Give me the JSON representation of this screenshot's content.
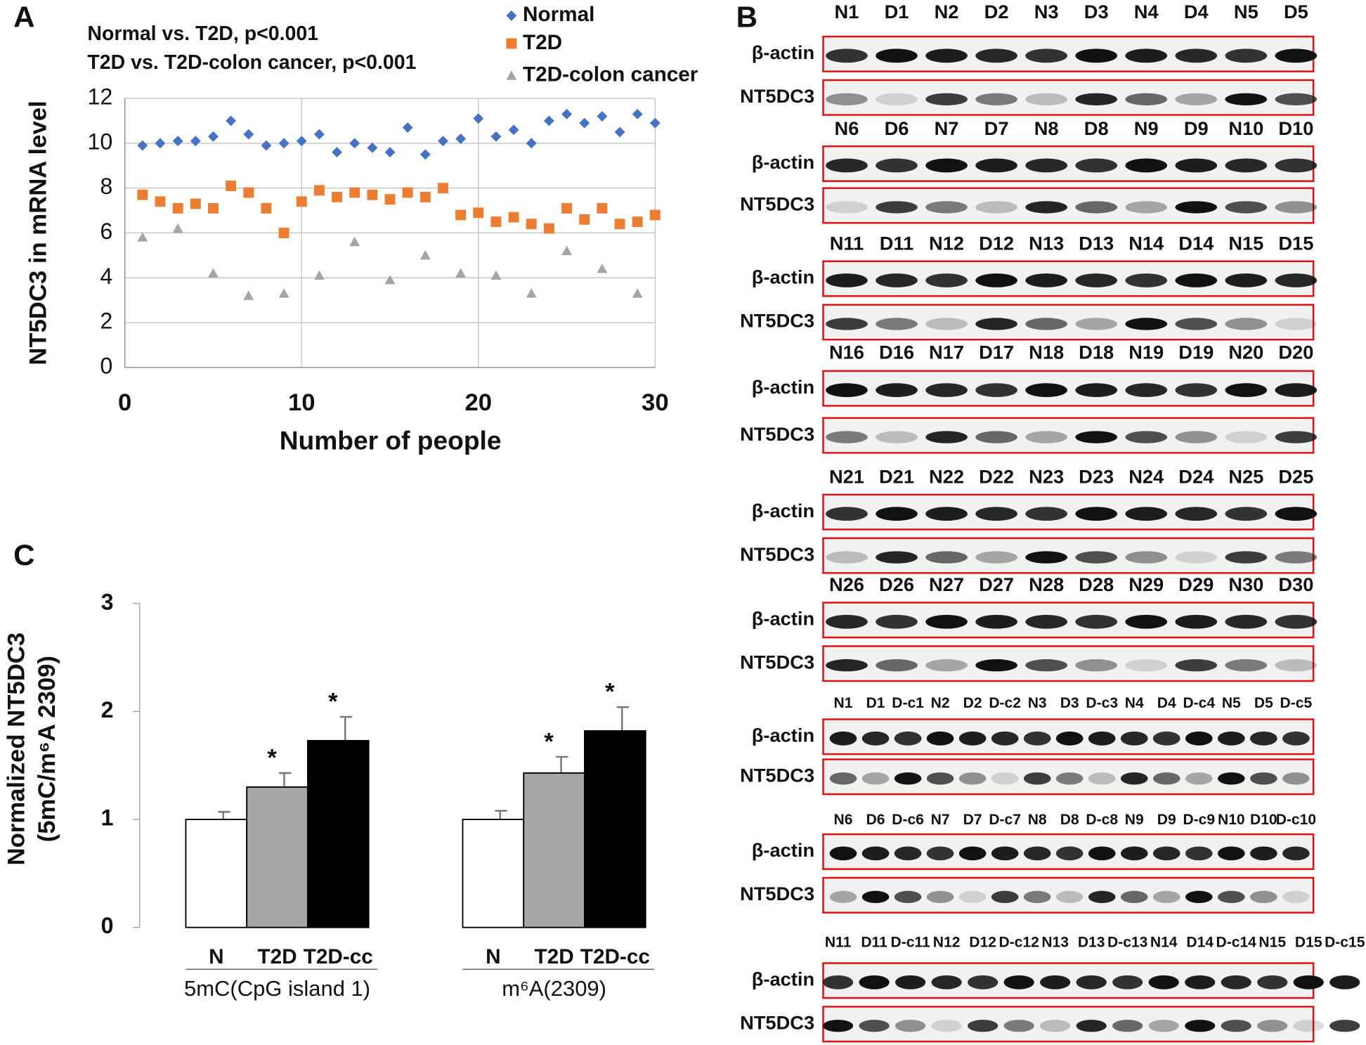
{
  "chart_data": [
    {
      "type": "scatter",
      "panel_label": "A",
      "annotations": [
        "Normal vs. T2D, p<0.001",
        "T2D vs. T2D-colon cancer, p<0.001"
      ],
      "y_label": "NT5DC3 in mRNA level",
      "x_label": "Number of people",
      "x": [
        1,
        2,
        3,
        4,
        5,
        6,
        7,
        8,
        9,
        10,
        11,
        12,
        13,
        14,
        15,
        16,
        17,
        18,
        19,
        20,
        21,
        22,
        23,
        24,
        25,
        26,
        27,
        28,
        29,
        30
      ],
      "series": [
        {
          "name": "Normal",
          "color": "#4472c4",
          "marker": "diamond",
          "values": [
            9.9,
            10.0,
            10.1,
            10.1,
            10.3,
            11.0,
            10.4,
            9.9,
            10.0,
            10.1,
            10.4,
            9.6,
            10.0,
            9.8,
            9.6,
            10.7,
            9.5,
            10.1,
            10.2,
            11.1,
            10.3,
            10.6,
            10.0,
            11.0,
            11.3,
            10.9,
            11.2,
            10.5,
            11.3,
            10.9
          ]
        },
        {
          "name": "T2D",
          "color": "#ed7d31",
          "marker": "square",
          "values": [
            7.7,
            7.4,
            7.1,
            7.3,
            7.1,
            8.1,
            7.8,
            7.1,
            6.0,
            7.4,
            7.9,
            7.6,
            7.8,
            7.7,
            7.5,
            7.8,
            7.6,
            8.0,
            6.8,
            6.9,
            6.5,
            6.7,
            6.4,
            6.2,
            7.1,
            6.6,
            7.1,
            6.4,
            6.5,
            6.8
          ]
        },
        {
          "name": "T2D-colon cancer",
          "color": "#a5a5a5",
          "marker": "triangle",
          "values": [
            5.8,
            null,
            6.2,
            null,
            4.2,
            null,
            3.2,
            null,
            3.3,
            null,
            4.1,
            null,
            5.6,
            null,
            3.9,
            null,
            5.0,
            null,
            4.2,
            null,
            4.1,
            null,
            3.3,
            null,
            5.2,
            null,
            4.4,
            null,
            3.3,
            null
          ]
        }
      ],
      "xlim": [
        0,
        30
      ],
      "xticks": [
        0,
        10,
        20,
        30
      ],
      "ylim": [
        0,
        12
      ],
      "yticks": [
        0,
        2,
        4,
        6,
        8,
        10,
        12
      ],
      "grid": true,
      "legend": "top-right"
    },
    {
      "type": "bar",
      "panel_label": "C",
      "y_label": [
        "Normalized  NT5DC3",
        "(5mC/m⁶A 2309)"
      ],
      "categories": [
        "5mC(CpG island 1)",
        "m⁶A(2309)"
      ],
      "series": [
        {
          "name": "N",
          "color": "#ffffff",
          "values": [
            1.0,
            1.0
          ],
          "errors": [
            0.07,
            0.08
          ]
        },
        {
          "name": "T2D",
          "color": "#a6a6a6",
          "values": [
            1.3,
            1.43
          ],
          "errors": [
            0.13,
            0.15
          ],
          "significance": [
            "*",
            "*"
          ]
        },
        {
          "name": "T2D-cc",
          "color": "#000000",
          "values": [
            1.73,
            1.82
          ],
          "errors": [
            0.22,
            0.22
          ],
          "significance": [
            "*",
            "*"
          ]
        }
      ],
      "ylim": [
        0,
        3
      ],
      "yticks": [
        0,
        1,
        2,
        3
      ]
    }
  ],
  "blots": {
    "panel_label": "B",
    "row_labels": [
      "β-actin",
      "NT5DC3"
    ],
    "blocks": [
      {
        "lanes": [
          "N1",
          "D1",
          "N2",
          "D2",
          "N3",
          "D3",
          "N4",
          "D4",
          "N5",
          "D5"
        ]
      },
      {
        "lanes": [
          "N6",
          "D6",
          "N7",
          "D7",
          "N8",
          "D8",
          "N9",
          "D9",
          "N10",
          "D10"
        ]
      },
      {
        "lanes": [
          "N11",
          "D11",
          "N12",
          "D12",
          "N13",
          "D13",
          "N14",
          "D14",
          "N15",
          "D15"
        ]
      },
      {
        "lanes": [
          "N16",
          "D16",
          "N17",
          "D17",
          "N18",
          "D18",
          "N19",
          "D19",
          "N20",
          "D20"
        ]
      },
      {
        "lanes": [
          "N21",
          "D21",
          "N22",
          "D22",
          "N23",
          "D23",
          "N24",
          "D24",
          "N25",
          "D25"
        ]
      },
      {
        "lanes": [
          "N26",
          "D26",
          "N27",
          "D27",
          "N28",
          "D28",
          "N29",
          "D29",
          "N30",
          "D30"
        ]
      },
      {
        "lanes": [
          "N1",
          "D1",
          "D-c1",
          "N2",
          "D2",
          "D-c2",
          "N3",
          "D3",
          "D-c3",
          "N4",
          "D4",
          "D-c4",
          "N5",
          "D5",
          "D-c5"
        ]
      },
      {
        "lanes": [
          "N6",
          "D6",
          "D-c6",
          "N7",
          "D7",
          "D-c7",
          "N8",
          "D8",
          "D-c8",
          "N9",
          "D9",
          "D-c9",
          "N10",
          "D10",
          "D-c10"
        ]
      },
      {
        "lanes": [
          "N11",
          "D11",
          "D-c11",
          "N12",
          "D12",
          "D-c12",
          "N13",
          "D13",
          "D-c13",
          "N14",
          "D14",
          "D-c14",
          "N15",
          "D15",
          "D-c15"
        ]
      }
    ]
  }
}
